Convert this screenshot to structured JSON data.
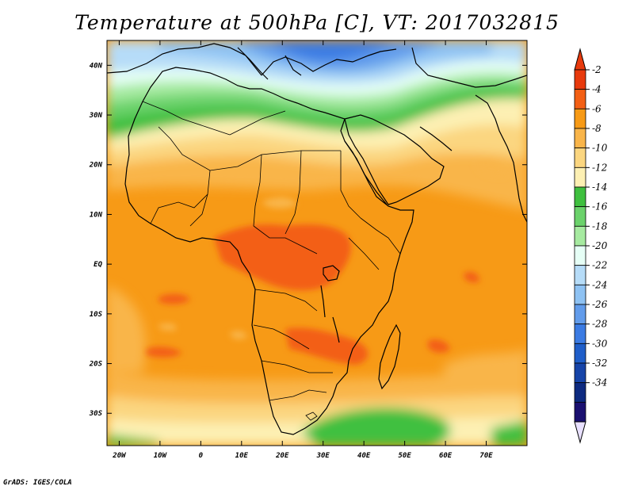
{
  "title": "Temperature at 500hPa [C], VT: 2017032815",
  "credit": "GrADS: IGES/COLA",
  "map": {
    "lon_range": [
      -23,
      80
    ],
    "lat_range": [
      -36.5,
      45
    ],
    "x_ticks": [
      "20W",
      "10W",
      "0",
      "10E",
      "20E",
      "30E",
      "40E",
      "50E",
      "60E",
      "70E"
    ],
    "y_ticks": [
      "40N",
      "30N",
      "20N",
      "10N",
      "EQ",
      "10S",
      "20S",
      "30S"
    ]
  },
  "colorbar": {
    "levels": [
      "-2",
      "-4",
      "-6",
      "-8",
      "-10",
      "-12",
      "-14",
      "-16",
      "-18",
      "-20",
      "-22",
      "-24",
      "-26",
      "-28",
      "-30",
      "-32",
      "-34"
    ],
    "colors": [
      "#e83a0d",
      "#f35f14",
      "#f79a16",
      "#f9b54a",
      "#fbd680",
      "#fdf0b3",
      "#3fc03f",
      "#6bd26b",
      "#a6eaa0",
      "#e6fff6",
      "#b6dcf8",
      "#8ec2f3",
      "#629ceb",
      "#3b7be3",
      "#1f5ec9",
      "#1644a8",
      "#0d2a80",
      "#1a1070"
    ],
    "top_arrow_color": "#e83a0d",
    "bottom_arrow_color": "#e8e0ff"
  }
}
